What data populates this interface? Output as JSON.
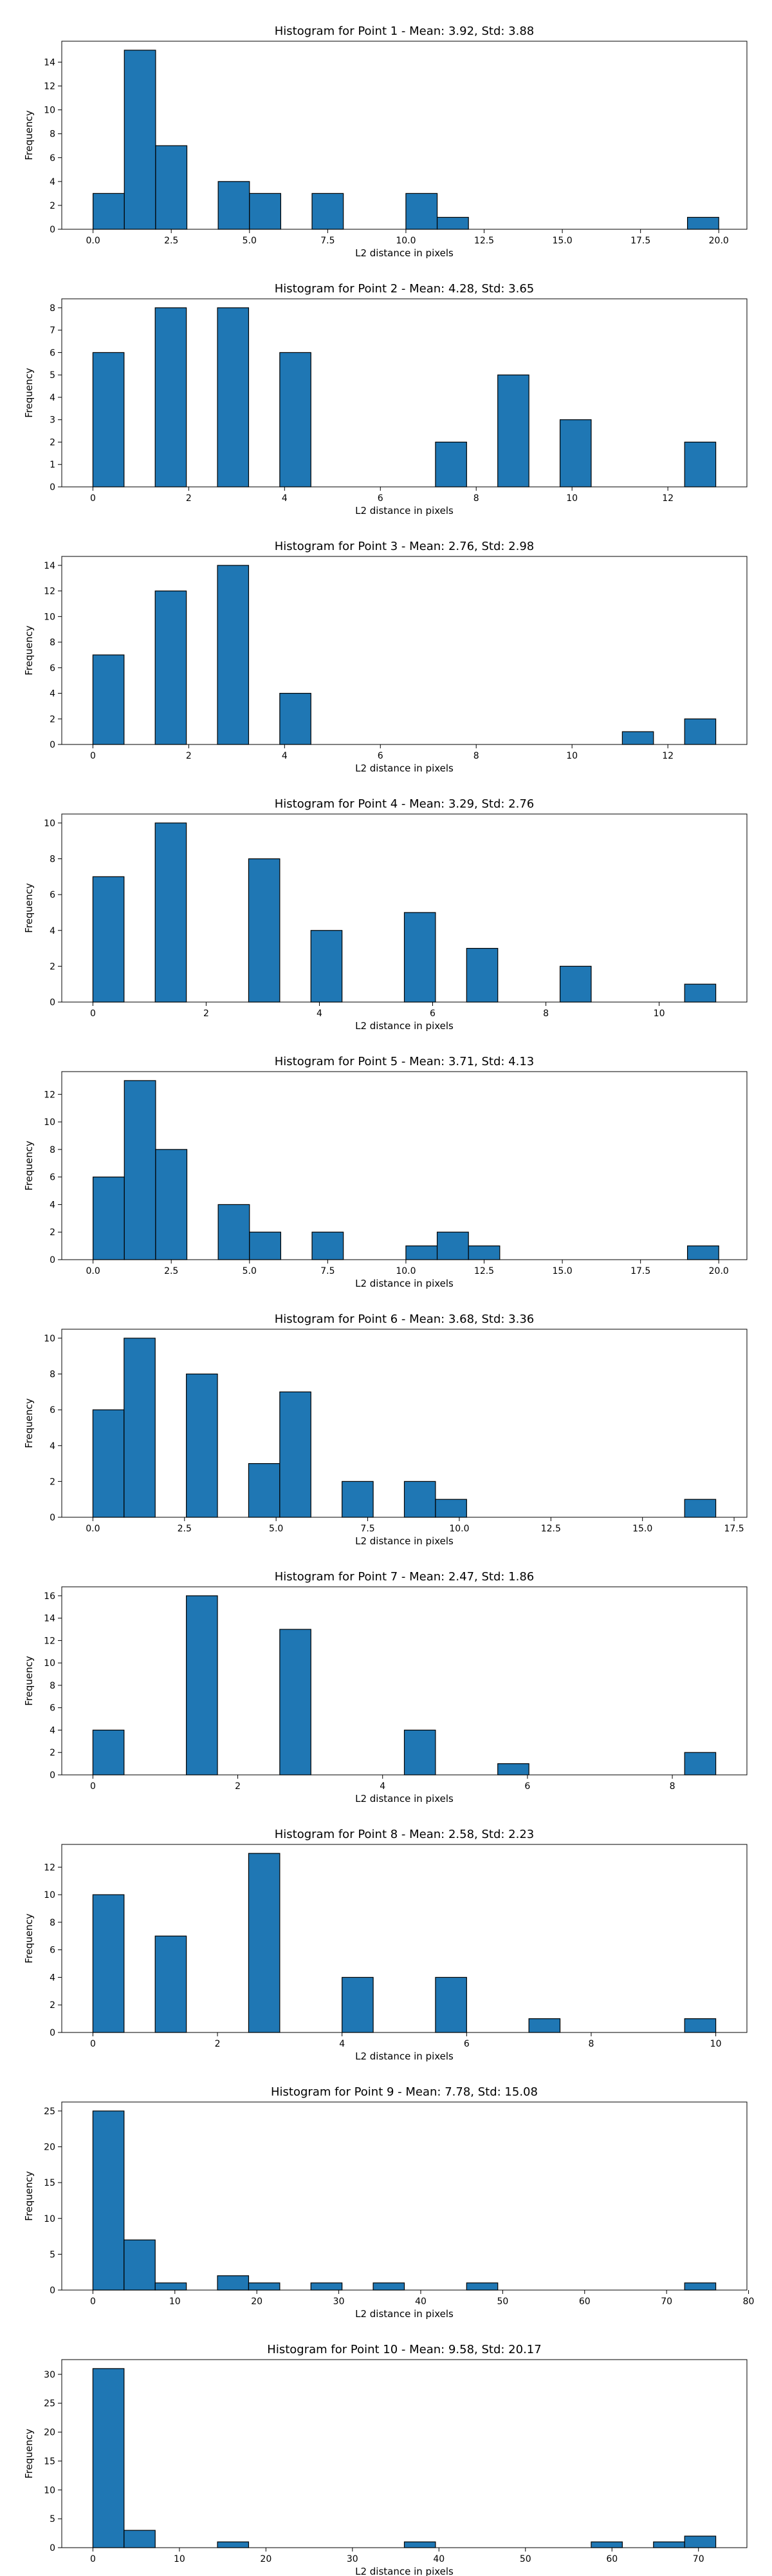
{
  "figure": {
    "bar_color": "#1f77b4",
    "edge_color": "#000000"
  },
  "chart_data": [
    {
      "type": "bar",
      "title": "Histogram for Point 1 - Mean: 3.92, Std: 3.88",
      "xlabel": "L2 distance in pixels",
      "ylabel": "Frequency",
      "xlim": [
        -1.0,
        20.9
      ],
      "ylim": [
        0,
        15.75
      ],
      "xticks": [
        0.0,
        2.5,
        5.0,
        7.5,
        10.0,
        12.5,
        15.0,
        17.5,
        20.0
      ],
      "xtick_labels": [
        "0.0",
        "2.5",
        "5.0",
        "7.5",
        "10.0",
        "12.5",
        "15.0",
        "17.5",
        "20.0"
      ],
      "yticks": [
        0,
        2,
        4,
        6,
        8,
        10,
        12,
        14
      ],
      "ytick_labels": [
        "0",
        "2",
        "4",
        "6",
        "8",
        "10",
        "12",
        "14"
      ],
      "bins": [
        [
          0.0,
          1.0,
          3
        ],
        [
          1.0,
          2.0,
          15
        ],
        [
          2.0,
          3.0,
          7
        ],
        [
          4.0,
          5.0,
          4
        ],
        [
          5.0,
          6.0,
          3
        ],
        [
          7.0,
          8.0,
          3
        ],
        [
          10.0,
          11.0,
          3
        ],
        [
          11.0,
          12.0,
          1
        ],
        [
          19.0,
          20.0,
          1
        ]
      ]
    },
    {
      "type": "bar",
      "title": "Histogram for Point 2 - Mean: 4.28, Std: 3.65",
      "xlabel": "L2 distance in pixels",
      "ylabel": "Frequency",
      "xlim": [
        -0.65,
        13.65
      ],
      "ylim": [
        0,
        8.4
      ],
      "xticks": [
        0,
        2,
        4,
        6,
        8,
        10,
        12
      ],
      "xtick_labels": [
        "0",
        "2",
        "4",
        "6",
        "8",
        "10",
        "12"
      ],
      "yticks": [
        0,
        1,
        2,
        3,
        4,
        5,
        6,
        7,
        8
      ],
      "ytick_labels": [
        "0",
        "1",
        "2",
        "3",
        "4",
        "5",
        "6",
        "7",
        "8"
      ],
      "bins": [
        [
          0.0,
          0.65,
          6
        ],
        [
          1.3,
          1.95,
          8
        ],
        [
          2.6,
          3.25,
          8
        ],
        [
          3.9,
          4.55,
          6
        ],
        [
          7.15,
          7.8,
          2
        ],
        [
          8.45,
          9.1,
          5
        ],
        [
          9.75,
          10.4,
          3
        ],
        [
          12.35,
          13.0,
          2
        ]
      ]
    },
    {
      "type": "bar",
      "title": "Histogram for Point 3 - Mean: 2.76, Std: 2.98",
      "xlabel": "L2 distance in pixels",
      "ylabel": "Frequency",
      "xlim": [
        -0.65,
        13.65
      ],
      "ylim": [
        0,
        14.7
      ],
      "xticks": [
        0,
        2,
        4,
        6,
        8,
        10,
        12
      ],
      "xtick_labels": [
        "0",
        "2",
        "4",
        "6",
        "8",
        "10",
        "12"
      ],
      "yticks": [
        0,
        2,
        4,
        6,
        8,
        10,
        12,
        14
      ],
      "ytick_labels": [
        "0",
        "2",
        "4",
        "6",
        "8",
        "10",
        "12",
        "14"
      ],
      "bins": [
        [
          0.0,
          0.65,
          7
        ],
        [
          1.3,
          1.95,
          12
        ],
        [
          2.6,
          3.25,
          14
        ],
        [
          3.9,
          4.55,
          4
        ],
        [
          11.05,
          11.7,
          1
        ],
        [
          12.35,
          13.0,
          2
        ]
      ]
    },
    {
      "type": "bar",
      "title": "Histogram for Point 4 - Mean: 3.29, Std: 2.76",
      "xlabel": "L2 distance in pixels",
      "ylabel": "Frequency",
      "xlim": [
        -0.55,
        11.55
      ],
      "ylim": [
        0,
        10.5
      ],
      "xticks": [
        0,
        2,
        4,
        6,
        8,
        10
      ],
      "xtick_labels": [
        "0",
        "2",
        "4",
        "6",
        "8",
        "10"
      ],
      "yticks": [
        0,
        2,
        4,
        6,
        8,
        10
      ],
      "ytick_labels": [
        "0",
        "2",
        "4",
        "6",
        "8",
        "10"
      ],
      "bins": [
        [
          0.0,
          0.55,
          7
        ],
        [
          1.1,
          1.65,
          10
        ],
        [
          2.75,
          3.3,
          8
        ],
        [
          3.85,
          4.4,
          4
        ],
        [
          5.5,
          6.05,
          5
        ],
        [
          6.6,
          7.15,
          3
        ],
        [
          8.25,
          8.8,
          2
        ],
        [
          10.45,
          11.0,
          1
        ]
      ]
    },
    {
      "type": "bar",
      "title": "Histogram for Point 5 - Mean: 3.71, Std: 4.13",
      "xlabel": "L2 distance in pixels",
      "ylabel": "Frequency",
      "xlim": [
        -1.0,
        20.9
      ],
      "ylim": [
        0,
        13.65
      ],
      "xticks": [
        0.0,
        2.5,
        5.0,
        7.5,
        10.0,
        12.5,
        15.0,
        17.5,
        20.0
      ],
      "xtick_labels": [
        "0.0",
        "2.5",
        "5.0",
        "7.5",
        "10.0",
        "12.5",
        "15.0",
        "17.5",
        "20.0"
      ],
      "yticks": [
        0,
        2,
        4,
        6,
        8,
        10,
        12
      ],
      "ytick_labels": [
        "0",
        "2",
        "4",
        "6",
        "8",
        "10",
        "12"
      ],
      "bins": [
        [
          0.0,
          1.0,
          6
        ],
        [
          1.0,
          2.0,
          13
        ],
        [
          2.0,
          3.0,
          8
        ],
        [
          4.0,
          5.0,
          4
        ],
        [
          5.0,
          6.0,
          2
        ],
        [
          7.0,
          8.0,
          2
        ],
        [
          10.0,
          11.0,
          1
        ],
        [
          11.0,
          12.0,
          2
        ],
        [
          12.0,
          13.0,
          1
        ],
        [
          19.0,
          20.0,
          1
        ]
      ]
    },
    {
      "type": "bar",
      "title": "Histogram for Point 6 - Mean: 3.68, Std: 3.36",
      "xlabel": "L2 distance in pixels",
      "ylabel": "Frequency",
      "xlim": [
        -0.85,
        17.85
      ],
      "ylim": [
        0,
        10.5
      ],
      "xticks": [
        0.0,
        2.5,
        5.0,
        7.5,
        10.0,
        12.5,
        15.0,
        17.5
      ],
      "xtick_labels": [
        "0.0",
        "2.5",
        "5.0",
        "7.5",
        "10.0",
        "12.5",
        "15.0",
        "17.5"
      ],
      "yticks": [
        0,
        2,
        4,
        6,
        8,
        10
      ],
      "ytick_labels": [
        "0",
        "2",
        "4",
        "6",
        "8",
        "10"
      ],
      "bins": [
        [
          0.0,
          0.85,
          6
        ],
        [
          0.85,
          1.7,
          10
        ],
        [
          2.55,
          3.4,
          8
        ],
        [
          4.25,
          5.1,
          3
        ],
        [
          5.1,
          5.95,
          7
        ],
        [
          6.8,
          7.65,
          2
        ],
        [
          8.5,
          9.35,
          2
        ],
        [
          9.35,
          10.2,
          1
        ],
        [
          16.15,
          17.0,
          1
        ]
      ]
    },
    {
      "type": "bar",
      "title": "Histogram for Point 7 - Mean: 2.47, Std: 1.86",
      "xlabel": "L2 distance in pixels",
      "ylabel": "Frequency",
      "xlim": [
        -0.43,
        9.03
      ],
      "ylim": [
        0,
        16.8
      ],
      "xticks": [
        0,
        2,
        4,
        6,
        8
      ],
      "xtick_labels": [
        "0",
        "2",
        "4",
        "6",
        "8"
      ],
      "yticks": [
        0,
        2,
        4,
        6,
        8,
        10,
        12,
        14,
        16
      ],
      "ytick_labels": [
        "0",
        "2",
        "4",
        "6",
        "8",
        "10",
        "12",
        "14",
        "16"
      ],
      "bins": [
        [
          0.0,
          0.43,
          4
        ],
        [
          1.29,
          1.72,
          16
        ],
        [
          2.58,
          3.01,
          13
        ],
        [
          4.3,
          4.73,
          4
        ],
        [
          5.59,
          6.02,
          1
        ],
        [
          8.17,
          8.6,
          2
        ]
      ]
    },
    {
      "type": "bar",
      "title": "Histogram for Point 8 - Mean: 2.58, Std: 2.23",
      "xlabel": "L2 distance in pixels",
      "ylabel": "Frequency",
      "xlim": [
        -0.5,
        10.5
      ],
      "ylim": [
        0,
        13.65
      ],
      "xticks": [
        0,
        2,
        4,
        6,
        8,
        10
      ],
      "xtick_labels": [
        "0",
        "2",
        "4",
        "6",
        "8",
        "10"
      ],
      "yticks": [
        0,
        2,
        4,
        6,
        8,
        10,
        12
      ],
      "ytick_labels": [
        "0",
        "2",
        "4",
        "6",
        "8",
        "10",
        "12"
      ],
      "bins": [
        [
          0.0,
          0.5,
          10
        ],
        [
          1.0,
          1.5,
          7
        ],
        [
          2.5,
          3.0,
          13
        ],
        [
          4.0,
          4.5,
          4
        ],
        [
          5.5,
          6.0,
          4
        ],
        [
          7.0,
          7.5,
          1
        ],
        [
          9.5,
          10.0,
          1
        ]
      ]
    },
    {
      "type": "bar",
      "title": "Histogram for Point 9 - Mean: 7.78, Std: 15.08",
      "xlabel": "L2 distance in pixels",
      "ylabel": "Frequency",
      "xlim": [
        -3.8,
        79.8
      ],
      "ylim": [
        0,
        26.25
      ],
      "xticks": [
        0,
        10,
        20,
        30,
        40,
        50,
        60,
        70,
        80
      ],
      "xtick_labels": [
        "0",
        "10",
        "20",
        "30",
        "40",
        "50",
        "60",
        "70",
        "80"
      ],
      "yticks": [
        0,
        5,
        10,
        15,
        20,
        25
      ],
      "ytick_labels": [
        "0",
        "5",
        "10",
        "15",
        "20",
        "25"
      ],
      "bins": [
        [
          0.0,
          3.8,
          25
        ],
        [
          3.8,
          7.6,
          7
        ],
        [
          7.6,
          11.4,
          1
        ],
        [
          15.2,
          19.0,
          2
        ],
        [
          19.0,
          22.8,
          1
        ],
        [
          26.6,
          30.4,
          1
        ],
        [
          34.2,
          38.0,
          1
        ],
        [
          45.6,
          49.4,
          1
        ],
        [
          72.2,
          76.0,
          1
        ]
      ]
    },
    {
      "type": "bar",
      "title": "Histogram for Point 10 - Mean: 9.58, Std: 20.17",
      "xlabel": "L2 distance in pixels",
      "ylabel": "Frequency",
      "xlim": [
        -3.6,
        75.6
      ],
      "ylim": [
        0,
        32.55
      ],
      "xticks": [
        0,
        10,
        20,
        30,
        40,
        50,
        60,
        70
      ],
      "xtick_labels": [
        "0",
        "10",
        "20",
        "30",
        "40",
        "50",
        "60",
        "70"
      ],
      "yticks": [
        0,
        5,
        10,
        15,
        20,
        25,
        30
      ],
      "ytick_labels": [
        "0",
        "5",
        "10",
        "15",
        "20",
        "25",
        "30"
      ],
      "bins": [
        [
          0.0,
          3.6,
          31
        ],
        [
          3.6,
          7.2,
          3
        ],
        [
          14.4,
          18.0,
          1
        ],
        [
          36.0,
          39.6,
          1
        ],
        [
          57.6,
          61.2,
          1
        ],
        [
          64.8,
          68.4,
          1
        ],
        [
          68.4,
          72.0,
          2
        ]
      ]
    }
  ]
}
